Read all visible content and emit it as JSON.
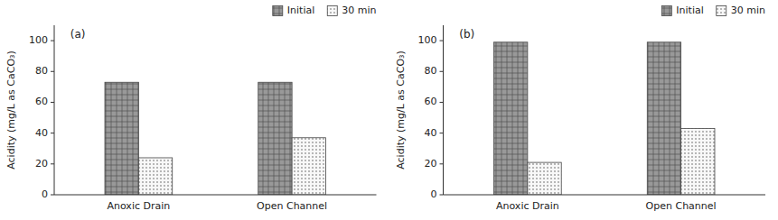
{
  "chart_data": [
    {
      "type": "bar",
      "annotations": [
        "(a)"
      ],
      "categories": [
        "Anoxic Drain",
        "Open Channel"
      ],
      "series": [
        {
          "name": "Initial",
          "color": "#999999",
          "values": [
            73,
            73
          ]
        },
        {
          "name": "30 min",
          "color": "#f8f8f8",
          "values": [
            24,
            37
          ]
        }
      ],
      "ylabel": "Acidity (mg/L as CaCO₃)",
      "ylim": [
        0,
        110
      ],
      "yticks": [
        0,
        20,
        40,
        60,
        80,
        100
      ],
      "grid": false,
      "legend": "upper right"
    },
    {
      "type": "bar",
      "annotations": [
        "(b)"
      ],
      "categories": [
        "Anoxic Drain",
        "Open Channel"
      ],
      "series": [
        {
          "name": "Initial",
          "color": "#999999",
          "values": [
            99,
            99
          ]
        },
        {
          "name": "30 min",
          "color": "#f8f8f8",
          "values": [
            21,
            43
          ]
        }
      ],
      "ylabel": "Acidity (mg/L as CaCO₃)",
      "ylim": [
        0,
        110
      ],
      "yticks": [
        0,
        20,
        40,
        60,
        80,
        100
      ],
      "grid": false,
      "legend": "upper right"
    }
  ]
}
